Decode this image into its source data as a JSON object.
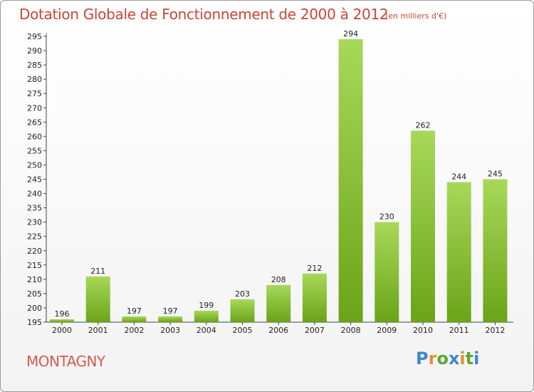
{
  "header": {
    "title": "Dotation Globale de Fonctionnement de 2000 à 2012",
    "unit": "(en milliers d'€)"
  },
  "commune": "MONTAGNY",
  "logo": {
    "text": "Proxiti",
    "colors": [
      "#3d86d6",
      "#e2922e",
      "#5aa82f",
      "#3d86d6",
      "#e2922e",
      "#5aa82f",
      "#3d86d6"
    ]
  },
  "colors": {
    "bar_light": "#a8d85a",
    "bar_dark": "#6aa418",
    "title": "#c9453a"
  },
  "chart_data": {
    "type": "bar",
    "title": "Dotation Globale de Fonctionnement de 2000 à 2012",
    "subtitle": "(en milliers d'€)",
    "xlabel": "",
    "ylabel": "",
    "categories": [
      "2000",
      "2001",
      "2002",
      "2003",
      "2004",
      "2005",
      "2006",
      "2007",
      "2008",
      "2009",
      "2010",
      "2011",
      "2012"
    ],
    "values": [
      196,
      211,
      197,
      197,
      199,
      203,
      208,
      212,
      294,
      230,
      262,
      244,
      245
    ],
    "ylim": [
      195,
      295
    ],
    "yticks": [
      195,
      200,
      205,
      210,
      215,
      220,
      225,
      230,
      235,
      240,
      245,
      250,
      255,
      260,
      265,
      270,
      275,
      280,
      285,
      290,
      295
    ],
    "grid": false,
    "legend": "none"
  }
}
